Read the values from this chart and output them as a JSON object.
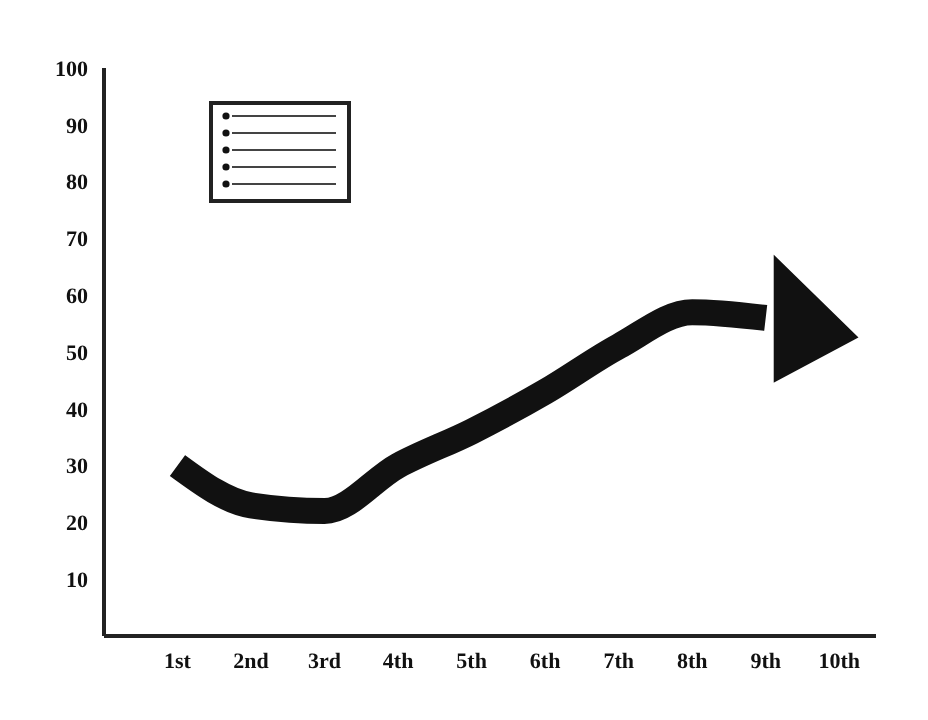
{
  "chart_data": {
    "type": "line",
    "categories": [
      "1st",
      "2nd",
      "3rd",
      "4th",
      "5th",
      "6th",
      "7th",
      "8th",
      "9th",
      "10th"
    ],
    "series": [
      {
        "color": "#111111",
        "values": [
          30,
          23,
          22,
          30,
          36,
          43,
          51,
          57,
          56,
          null
        ]
      }
    ],
    "ylim": [
      0,
      100
    ],
    "yticks": [
      10,
      20,
      30,
      40,
      50,
      60,
      70,
      80,
      90,
      100
    ],
    "grid": false,
    "legend": false,
    "marker": "none",
    "line_style": "solid"
  }
}
